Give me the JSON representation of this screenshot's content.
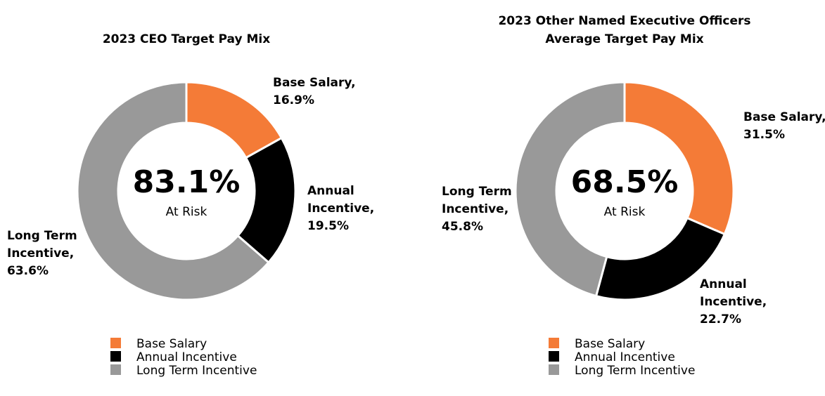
{
  "chart_data": [
    {
      "type": "pie",
      "donut": true,
      "title": [
        "2023 CEO Target Pay Mix"
      ],
      "categories": [
        "Base Salary",
        "Annual Incentive",
        "Long Term Incentive"
      ],
      "data_labels": [
        [
          "Base Salary,"
        ],
        [
          "Annual",
          "Incentive,"
        ],
        [
          "Long Term",
          "Incentive,"
        ]
      ],
      "values": [
        16.9,
        19.5,
        63.6
      ],
      "value_labels": [
        "16.9%",
        "19.5%",
        "63.6%"
      ],
      "colors": [
        "#f47b37",
        "#000000",
        "#999999"
      ],
      "center_text": "83.1%",
      "center_subtext": "At Risk"
    },
    {
      "type": "pie",
      "donut": true,
      "title": [
        "2023 Other Named Executive Officers",
        "Average Target Pay Mix"
      ],
      "categories": [
        "Base Salary",
        "Annual Incentive",
        "Long Term Incentive"
      ],
      "data_labels": [
        [
          "Base Salary,"
        ],
        [
          "Annual",
          "Incentive,"
        ],
        [
          "Long Term",
          "Incentive,"
        ]
      ],
      "values": [
        31.5,
        22.7,
        45.8
      ],
      "value_labels": [
        "31.5%",
        "22.7%",
        "45.8%"
      ],
      "colors": [
        "#f47b37",
        "#000000",
        "#999999"
      ],
      "center_text": "68.5%",
      "center_subtext": "At Risk"
    }
  ]
}
